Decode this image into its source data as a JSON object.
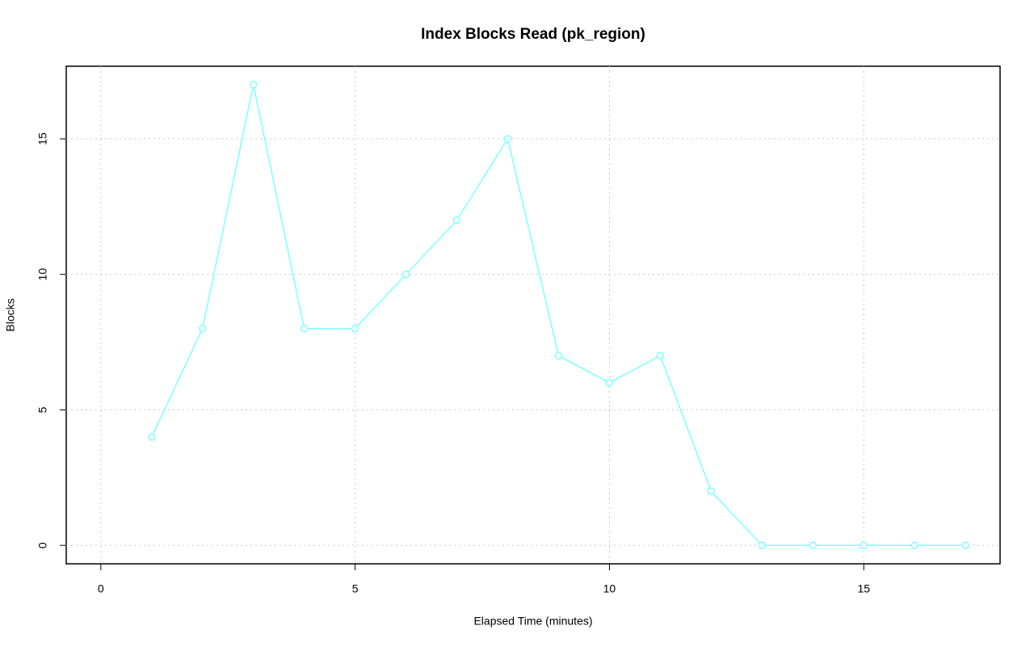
{
  "chart_data": {
    "type": "line",
    "title": "Index Blocks Read (pk_region)",
    "x_label": "Elapsed Time (minutes)",
    "y_label": "Blocks",
    "x": [
      1,
      2,
      3,
      4,
      5,
      6,
      7,
      8,
      9,
      10,
      11,
      12,
      13,
      14,
      15,
      16,
      17
    ],
    "series": [
      {
        "name": "pk_region",
        "color": "#80ffff",
        "values": [
          4,
          8,
          17,
          8,
          8,
          10,
          12,
          15,
          7,
          6,
          7,
          2,
          0,
          0,
          0,
          0,
          0
        ]
      }
    ],
    "xlim": [
      -0.68,
      17.68
    ],
    "xticks": [
      0,
      5,
      10,
      15
    ],
    "ylim": [
      -0.68,
      17.68
    ],
    "yticks": [
      0,
      5,
      10,
      15
    ],
    "grid": true
  }
}
